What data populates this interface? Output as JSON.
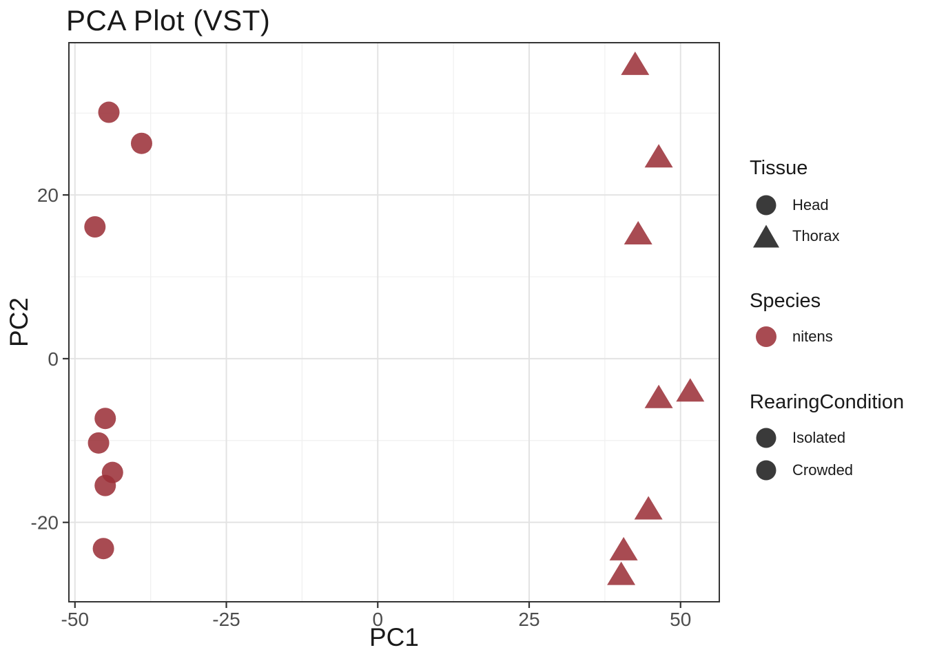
{
  "title": "PCA Plot (VST)",
  "colors": {
    "point_red": "#9B3038",
    "point_red_solid": "#A84B52",
    "legend_dark": "#3A3A3A",
    "text_dark": "#191919",
    "tick_text": "#4D4D4D",
    "panel_border": "#333333",
    "grid_major": "#E3E3E3",
    "grid_minor": "#F0F0F0",
    "marker_opacity": 0.87
  },
  "chart_data": {
    "type": "scatter",
    "title": "PCA Plot (VST)",
    "xlabel": "PC1",
    "ylabel": "PC2",
    "xlim": [
      -51.0,
      56.4
    ],
    "ylim": [
      -29.7,
      38.6
    ],
    "x_ticks": [
      -50,
      -25,
      0,
      25,
      50
    ],
    "y_ticks": [
      -20,
      0,
      20
    ],
    "x_minor_ticks": [
      -37.5,
      -12.5,
      12.5,
      37.5
    ],
    "y_minor_ticks": [
      -30,
      -10,
      10,
      30
    ],
    "grid": "on",
    "legend_position": "right",
    "series": [
      {
        "name": "Head",
        "marker": "circle",
        "points": [
          [
            -44.4,
            30.1
          ],
          [
            -39.0,
            26.3
          ],
          [
            -46.7,
            16.1
          ],
          [
            -45.0,
            -7.3
          ],
          [
            -46.1,
            -10.3
          ],
          [
            -43.8,
            -13.9
          ],
          [
            -45.0,
            -15.5
          ],
          [
            -45.3,
            -23.2
          ]
        ]
      },
      {
        "name": "Thorax",
        "marker": "triangle",
        "points": [
          [
            42.5,
            36.0
          ],
          [
            46.4,
            24.7
          ],
          [
            43.0,
            15.3
          ],
          [
            46.4,
            -4.7
          ],
          [
            51.6,
            -3.9
          ],
          [
            44.7,
            -18.3
          ],
          [
            40.6,
            -23.3
          ],
          [
            40.2,
            -26.3
          ]
        ]
      }
    ]
  },
  "legend": {
    "tissue": {
      "title": "Tissue",
      "items": [
        {
          "label": "Head",
          "marker": "circle"
        },
        {
          "label": "Thorax",
          "marker": "triangle"
        }
      ]
    },
    "species": {
      "title": "Species",
      "items": [
        {
          "label": "nitens",
          "marker": "circle"
        }
      ]
    },
    "rearing": {
      "title": "RearingCondition",
      "items": [
        {
          "label": "Isolated",
          "marker": "circle"
        },
        {
          "label": "Crowded",
          "marker": "circle"
        }
      ]
    }
  }
}
